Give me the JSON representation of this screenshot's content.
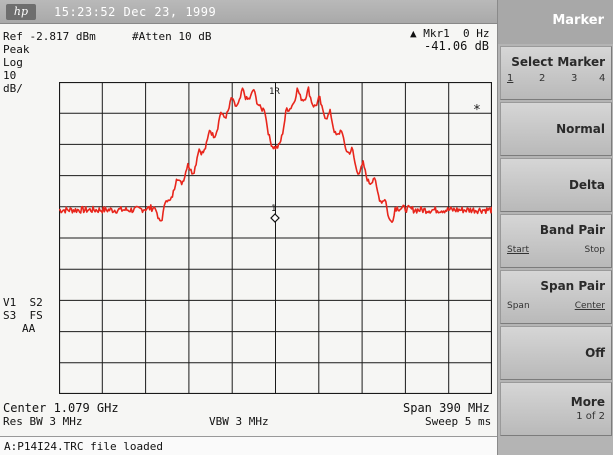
{
  "topbar": {
    "logo": "hp",
    "clock": "15:23:52 Dec 23, 1999"
  },
  "header": {
    "ref_level": "Ref -2.817 dBm",
    "atten": "#Atten 10 dB",
    "marker_name": "▲ Mkr1  0 Hz",
    "marker_value": "-41.06 dB",
    "detector": "Peak",
    "scale_type": "Log",
    "scale_value": "10",
    "scale_unit": "dB/",
    "marker_1r_label": "1R",
    "marker_1_label": "1",
    "asterisk": "*"
  },
  "side_status": {
    "line1": "V1  S2",
    "line2": "S3  FS",
    "line3": "AA"
  },
  "footer": {
    "center": "Center 1.079 GHz",
    "res_bw": "Res BW 3 MHz",
    "vbw": "VBW 3 MHz",
    "span": "Span 390 MHz",
    "sweep": "Sweep 5 ms"
  },
  "softkeys": {
    "title": "Marker",
    "select_marker": {
      "label": "Select Marker",
      "options": [
        "1",
        "2",
        "3",
        "4"
      ]
    },
    "normal": "Normal",
    "delta": "Delta",
    "band_pair": {
      "label": "Band Pair",
      "left": "Start",
      "right": "Stop"
    },
    "span_pair": {
      "label": "Span Pair",
      "left": "Span",
      "right": "Center"
    },
    "off": "Off",
    "more": {
      "label": "More",
      "page": "1 of 2"
    }
  },
  "status_line": "A:P14I24.TRC file loaded",
  "colors": {
    "trace": "#e8261c",
    "grid": "#1a1a1a",
    "screen_bg": "#f6f6f4"
  },
  "trace": {
    "noise_floor_db": -41,
    "envelope_points": [
      [
        -200,
        -41
      ],
      [
        -130,
        -41
      ],
      [
        -105,
        -40
      ],
      [
        -95,
        -32
      ],
      [
        -85,
        -27
      ],
      [
        -75,
        -24
      ],
      [
        -65,
        -17
      ],
      [
        -55,
        -12
      ],
      [
        -45,
        -6
      ],
      [
        -35,
        -3
      ],
      [
        -25,
        -1
      ],
      [
        -15,
        -3
      ],
      [
        -5,
        -14
      ],
      [
        0,
        -21
      ],
      [
        5,
        -14
      ],
      [
        15,
        -3
      ],
      [
        25,
        -1
      ],
      [
        35,
        -3
      ],
      [
        45,
        -6
      ],
      [
        55,
        -12
      ],
      [
        65,
        -17
      ],
      [
        75,
        -24
      ],
      [
        85,
        -27
      ],
      [
        95,
        -32
      ],
      [
        105,
        -40
      ],
      [
        130,
        -41
      ],
      [
        200,
        -41
      ]
    ]
  }
}
